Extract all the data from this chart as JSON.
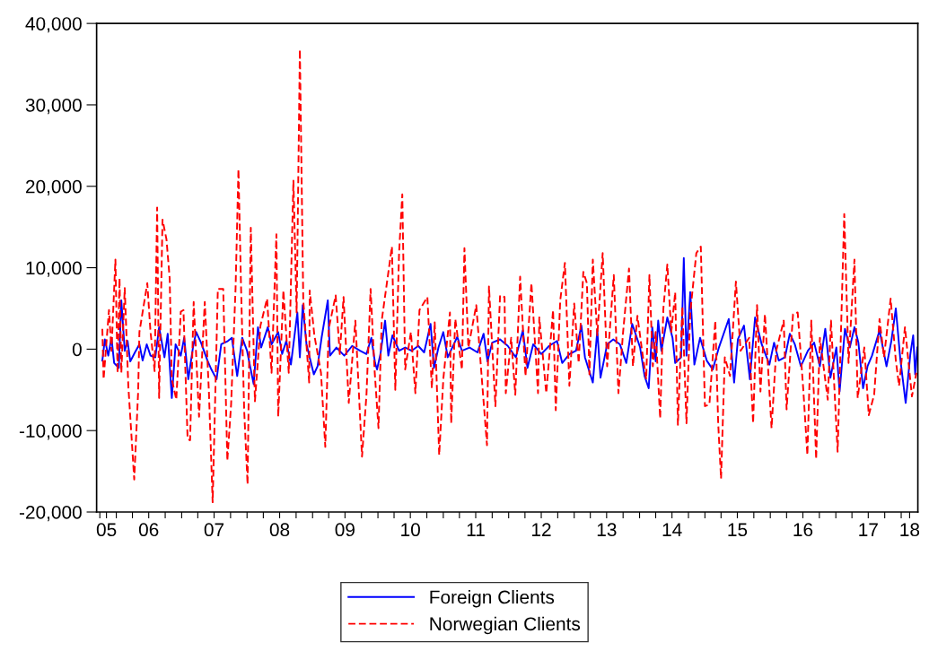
{
  "chart_data": {
    "type": "line",
    "xlim": [
      "2005-09-13",
      "2018-04-04"
    ],
    "ylim": [
      -20000,
      40000
    ],
    "yticks": [
      {
        "value": -20000,
        "label": "-20,000"
      },
      {
        "value": -10000,
        "label": "-10,000"
      },
      0,
      {
        "value": 10000,
        "label": "10,000"
      },
      {
        "value": 20000,
        "label": "20,000"
      },
      {
        "value": 30000,
        "label": "30,000"
      },
      {
        "value": 40000,
        "label": "40,000"
      }
    ],
    "xticks": [
      {
        "value": "2005-10-01",
        "label": null
      },
      {
        "value": "2005-11-07",
        "label": "05"
      },
      {
        "value": "2006-01-01",
        "label": null
      },
      {
        "value": "2006-04-01",
        "label": null
      },
      {
        "value": "2006-07-01",
        "label": "06"
      },
      {
        "value": "2006-10-01",
        "label": null
      },
      {
        "value": "2007-01-01",
        "label": null
      },
      {
        "value": "2007-04-01",
        "label": null
      },
      {
        "value": "2007-07-01",
        "label": "07"
      },
      {
        "value": "2007-10-01",
        "label": null
      },
      {
        "value": "2008-01-01",
        "label": null
      },
      {
        "value": "2008-04-01",
        "label": null
      },
      {
        "value": "2008-07-01",
        "label": "08"
      },
      {
        "value": "2008-10-01",
        "label": null
      },
      {
        "value": "2009-01-01",
        "label": null
      },
      {
        "value": "2009-04-01",
        "label": null
      },
      {
        "value": "2009-07-01",
        "label": "09"
      },
      {
        "value": "2009-10-01",
        "label": null
      },
      {
        "value": "2010-01-01",
        "label": null
      },
      {
        "value": "2010-04-01",
        "label": null
      },
      {
        "value": "2010-07-01",
        "label": "10"
      },
      {
        "value": "2010-10-01",
        "label": null
      },
      {
        "value": "2011-01-01",
        "label": null
      },
      {
        "value": "2011-04-01",
        "label": null
      },
      {
        "value": "2011-07-01",
        "label": "11"
      },
      {
        "value": "2011-10-01",
        "label": null
      },
      {
        "value": "2012-01-01",
        "label": null
      },
      {
        "value": "2012-04-01",
        "label": null
      },
      {
        "value": "2012-07-01",
        "label": "12"
      },
      {
        "value": "2012-10-01",
        "label": null
      },
      {
        "value": "2013-01-01",
        "label": null
      },
      {
        "value": "2013-04-01",
        "label": null
      },
      {
        "value": "2013-07-01",
        "label": "13"
      },
      {
        "value": "2013-10-01",
        "label": null
      },
      {
        "value": "2014-01-01",
        "label": null
      },
      {
        "value": "2014-04-01",
        "label": null
      },
      {
        "value": "2014-07-01",
        "label": "14"
      },
      {
        "value": "2014-10-01",
        "label": null
      },
      {
        "value": "2015-01-01",
        "label": null
      },
      {
        "value": "2015-04-01",
        "label": null
      },
      {
        "value": "2015-07-01",
        "label": "15"
      },
      {
        "value": "2015-10-01",
        "label": null
      },
      {
        "value": "2016-01-01",
        "label": null
      },
      {
        "value": "2016-04-01",
        "label": null
      },
      {
        "value": "2016-07-01",
        "label": "16"
      },
      {
        "value": "2016-10-01",
        "label": null
      },
      {
        "value": "2017-01-01",
        "label": null
      },
      {
        "value": "2017-04-01",
        "label": null
      },
      {
        "value": "2017-07-01",
        "label": "17"
      },
      {
        "value": "2017-10-01",
        "label": null
      },
      {
        "value": "2018-01-01",
        "label": null
      },
      {
        "value": "2018-02-17",
        "label": "18"
      }
    ],
    "grid": false,
    "legend": "bottom",
    "marker": "none",
    "series": [
      {
        "name": "Foreign Clients",
        "color": "#0000ff",
        "line_style": "solid",
        "x": [
          "2005-10-15",
          "2005-10-29",
          "2005-11-17",
          "2005-12-05",
          "2005-12-20",
          "2006-01-15",
          "2006-01-29",
          "2006-02-17",
          "2006-03-05",
          "2006-03-20",
          "2006-04-15",
          "2006-05-10",
          "2006-05-28",
          "2006-06-20",
          "2006-07-11",
          "2006-08-07",
          "2006-08-28",
          "2006-09-27",
          "2006-10-15",
          "2006-11-07",
          "2006-11-28",
          "2006-12-27",
          "2007-01-15",
          "2007-02-07",
          "2007-03-05",
          "2007-03-23",
          "2007-04-19",
          "2007-05-25",
          "2007-06-16",
          "2007-07-15",
          "2007-08-10",
          "2007-09-16",
          "2007-10-08",
          "2007-11-07",
          "2007-12-05",
          "2008-01-01",
          "2008-02-07",
          "2008-03-02",
          "2008-03-20",
          "2008-04-26",
          "2008-05-17",
          "2008-06-23",
          "2008-07-15",
          "2008-08-07",
          "2008-09-02",
          "2008-10-08",
          "2008-10-22",
          "2008-11-07",
          "2008-11-28",
          "2009-01-08",
          "2009-01-29",
          "2009-02-21",
          "2009-03-27",
          "2009-04-08",
          "2009-05-14",
          "2009-06-27",
          "2009-08-10",
          "2009-09-23",
          "2009-10-29",
          "2009-11-25",
          "2009-12-16",
          "2009-12-27",
          "2010-01-15",
          "2010-02-10",
          "2010-02-28",
          "2010-03-23",
          "2010-04-29",
          "2010-06-02",
          "2010-07-08",
          "2010-08-14",
          "2010-09-16",
          "2010-10-22",
          "2010-11-10",
          "2010-12-05",
          "2011-01-01",
          "2011-01-26",
          "2011-03-20",
          "2011-04-15",
          "2011-05-28",
          "2011-07-11",
          "2011-08-14",
          "2011-09-05",
          "2011-10-01",
          "2011-11-14",
          "2011-12-27",
          "2012-02-10",
          "2012-03-20",
          "2012-04-15",
          "2012-05-17",
          "2012-07-01",
          "2012-08-14",
          "2012-09-27",
          "2012-10-26",
          "2012-12-05",
          "2013-01-11",
          "2013-02-10",
          "2013-03-02",
          "2013-04-15",
          "2013-05-10",
          "2013-05-28",
          "2013-07-04",
          "2013-08-07",
          "2013-09-13",
          "2013-10-19",
          "2013-11-21",
          "2014-01-04",
          "2014-01-29",
          "2014-02-21",
          "2014-03-13",
          "2014-04-01",
          "2014-04-15",
          "2014-05-03",
          "2014-06-05",
          "2014-07-04",
          "2014-07-19",
          "2014-08-21",
          "2014-09-05",
          "2014-09-20",
          "2014-10-11",
          "2014-11-03",
          "2014-12-05",
          "2015-01-11",
          "2015-02-14",
          "2015-03-20",
          "2015-05-14",
          "2015-06-13",
          "2015-07-04",
          "2015-08-07",
          "2015-09-09",
          "2015-10-08",
          "2015-11-14",
          "2015-12-27",
          "2016-01-22",
          "2016-02-17",
          "2016-03-23",
          "2016-04-19",
          "2016-05-17",
          "2016-06-20",
          "2016-07-29",
          "2016-09-02",
          "2016-10-04",
          "2016-11-03",
          "2016-12-02",
          "2017-01-04",
          "2017-01-22",
          "2017-02-21",
          "2017-03-20",
          "2017-04-15",
          "2017-05-07",
          "2017-06-02",
          "2017-06-27",
          "2017-07-22",
          "2017-09-02",
          "2017-10-11",
          "2017-11-07",
          "2017-12-02",
          "2017-12-27",
          "2018-01-26",
          "2018-02-21",
          "2018-03-09",
          "2018-03-20",
          "2018-04-01"
        ],
        "values": [
          -1400,
          1200,
          -800,
          1400,
          -1700,
          -2300,
          6000,
          -200,
          1000,
          -1500,
          -400,
          600,
          -1400,
          600,
          -800,
          -1000,
          2700,
          -1000,
          1900,
          -6000,
          600,
          -800,
          1400,
          -3700,
          200,
          2100,
          800,
          -1400,
          -2500,
          -3700,
          600,
          1000,
          1400,
          -3300,
          1400,
          -200,
          -4300,
          2700,
          200,
          2700,
          600,
          2100,
          -600,
          1000,
          -1900,
          4500,
          -1000,
          5400,
          600,
          -3100,
          -2100,
          1500,
          6000,
          -800,
          200,
          -800,
          400,
          -200,
          -600,
          1400,
          -1700,
          -2500,
          -600,
          3500,
          -800,
          1700,
          -200,
          200,
          -200,
          400,
          -400,
          3100,
          -2300,
          200,
          2100,
          -1000,
          1500,
          -200,
          200,
          -400,
          1900,
          -1500,
          800,
          1200,
          400,
          -1000,
          2300,
          -2300,
          600,
          -600,
          400,
          1000,
          -1700,
          -600,
          -200,
          2900,
          -1000,
          -4100,
          2300,
          -3500,
          600,
          1200,
          600,
          -1700,
          3100,
          200,
          -3300,
          -4800,
          2700,
          -1500,
          3500,
          -200,
          3900,
          1400,
          -1700,
          -1000,
          11200,
          -800,
          7000,
          -1900,
          1400,
          -1400,
          -2500,
          200,
          3700,
          -4100,
          1200,
          2900,
          -3700,
          3900,
          600,
          -1900,
          800,
          -1400,
          -1000,
          1900,
          600,
          -2100,
          -200,
          800,
          -2100,
          2500,
          -3500,
          200,
          -5200,
          2500,
          200,
          2700,
          800,
          -4800,
          -2100,
          -800,
          2300,
          -2100,
          1000,
          5000,
          -1200,
          -6600,
          -600,
          1700,
          -3100,
          200
        ]
      },
      {
        "name": "Norwegian Clients",
        "color": "#ff0000",
        "line_style": "dashed",
        "x": [
          "2005-10-15",
          "2005-10-22",
          "2005-11-21",
          "2005-12-05",
          "2005-12-27",
          "2006-01-08",
          "2006-01-19",
          "2006-01-29",
          "2006-02-17",
          "2006-03-09",
          "2006-04-11",
          "2006-05-03",
          "2006-05-10",
          "2006-06-23",
          "2006-07-11",
          "2006-08-03",
          "2006-08-17",
          "2006-08-28",
          "2006-09-16",
          "2006-10-08",
          "2006-10-26",
          "2006-11-07",
          "2006-12-02",
          "2006-12-27",
          "2007-01-11",
          "2007-02-03",
          "2007-02-17",
          "2007-03-09",
          "2007-04-08",
          "2007-05-10",
          "2007-06-02",
          "2007-06-23",
          "2007-07-22",
          "2007-08-21",
          "2007-09-13",
          "2007-10-04",
          "2007-10-29",
          "2007-11-14",
          "2007-11-28",
          "2007-12-16",
          "2008-01-04",
          "2008-01-22",
          "2008-02-14",
          "2008-03-16",
          "2008-04-22",
          "2008-05-17",
          "2008-06-13",
          "2008-06-23",
          "2008-07-22",
          "2008-08-21",
          "2008-09-16",
          "2008-10-04",
          "2008-10-22",
          "2008-11-10",
          "2008-12-13",
          "2008-12-16",
          "2009-01-11",
          "2009-02-17",
          "2009-03-13",
          "2009-04-01",
          "2009-05-10",
          "2009-06-02",
          "2009-06-23",
          "2009-07-22",
          "2009-08-28",
          "2009-10-04",
          "2009-10-29",
          "2009-11-21",
          "2009-12-13",
          "2010-01-04",
          "2010-01-22",
          "2010-03-20",
          "2010-04-08",
          "2010-04-29",
          "2010-05-17",
          "2010-06-02",
          "2010-07-04",
          "2010-07-29",
          "2010-08-21",
          "2010-10-04",
          "2010-10-29",
          "2010-11-14",
          "2010-12-09",
          "2011-01-01",
          "2011-02-07",
          "2011-02-14",
          "2011-03-09",
          "2011-04-15",
          "2011-04-29",
          "2011-05-21",
          "2011-07-04",
          "2011-08-03",
          "2011-09-02",
          "2011-09-13",
          "2011-10-19",
          "2011-11-14",
          "2011-12-09",
          "2011-12-16",
          "2012-01-15",
          "2012-02-07",
          "2012-03-05",
          "2012-04-04",
          "2012-05-07",
          "2012-06-13",
          "2012-06-20",
          "2012-07-29",
          "2012-09-05",
          "2012-09-20",
          "2012-10-15",
          "2012-11-10",
          "2012-12-05",
          "2013-01-01",
          "2013-01-26",
          "2013-02-21",
          "2013-03-13",
          "2013-03-27",
          "2013-04-15",
          "2013-05-10",
          "2013-06-09",
          "2013-07-04",
          "2013-08-10",
          "2013-09-05",
          "2013-10-01",
          "2013-11-03",
          "2013-11-25",
          "2013-12-20",
          "2014-01-15",
          "2014-02-07",
          "2014-02-25",
          "2014-03-16",
          "2014-04-01",
          "2014-04-26",
          "2014-05-14",
          "2014-06-05",
          "2014-06-27",
          "2014-07-19",
          "2014-08-03",
          "2014-08-28",
          "2014-09-20",
          "2014-10-11",
          "2014-11-14",
          "2014-12-09",
          "2015-01-01",
          "2015-01-26",
          "2015-02-28",
          "2015-03-16",
          "2015-04-01",
          "2015-04-22",
          "2015-05-21",
          "2015-06-23",
          "2015-07-19",
          "2015-09-05",
          "2015-09-27",
          "2015-10-19",
          "2015-11-07",
          "2015-12-02",
          "2016-01-08",
          "2016-02-03",
          "2016-03-16",
          "2016-04-01",
          "2016-05-07",
          "2016-06-02",
          "2016-07-04",
          "2016-07-26",
          "2016-08-17",
          "2016-09-13",
          "2016-10-04",
          "2016-11-17",
          "2016-12-05",
          "2017-01-11",
          "2017-02-17",
          "2017-03-13",
          "2017-04-15",
          "2017-05-03",
          "2017-06-09",
          "2017-07-04",
          "2017-08-03",
          "2017-09-02",
          "2017-09-27",
          "2017-11-03",
          "2017-12-02",
          "2017-12-20",
          "2018-01-22",
          "2018-03-02",
          "2018-03-27"
        ],
        "values": [
          2500,
          -3700,
          4800,
          -200,
          11000,
          -2900,
          8700,
          -2900,
          7500,
          -4500,
          -16000,
          -5200,
          2100,
          8100,
          2100,
          -2700,
          17400,
          -6000,
          15900,
          13500,
          8700,
          -3700,
          -6200,
          4600,
          4800,
          -11000,
          -11200,
          5800,
          -8300,
          5800,
          -5200,
          -18800,
          7400,
          7400,
          -13700,
          -6800,
          7500,
          22100,
          8100,
          -7500,
          -16600,
          14900,
          -6400,
          2900,
          6200,
          -2900,
          14100,
          -8300,
          7200,
          -2900,
          20700,
          4500,
          36800,
          6000,
          -4100,
          7200,
          1700,
          -2900,
          -12000,
          2500,
          6600,
          -600,
          6400,
          -6600,
          3500,
          -13200,
          -5600,
          7400,
          -2500,
          -9700,
          3500,
          12600,
          -5000,
          11800,
          19000,
          -2500,
          2100,
          -5400,
          4800,
          6400,
          -4800,
          3300,
          -13000,
          -3700,
          4500,
          -9100,
          3700,
          -2500,
          12400,
          200,
          5400,
          -3300,
          -11800,
          7700,
          -7000,
          6600,
          6400,
          -5400,
          1400,
          -5600,
          8900,
          -3300,
          8100,
          -5400,
          3900,
          -5400,
          4800,
          -7500,
          6000,
          10600,
          -4500,
          5600,
          -1700,
          9500,
          8100,
          -3100,
          11000,
          1700,
          11800,
          -2100,
          9100,
          -5400,
          2100,
          9900,
          -2100,
          4100,
          -200,
          -3700,
          9100,
          -2100,
          2100,
          -8500,
          5000,
          10400,
          2100,
          7000,
          -9300,
          5200,
          -9100,
          4500,
          11800,
          12600,
          -7000,
          -6800,
          3500,
          -9100,
          -15900,
          -1000,
          -3300,
          8300,
          -200,
          1400,
          -9100,
          5400,
          -5200,
          4300,
          -9700,
          -200,
          3500,
          -7400,
          4300,
          4500,
          -5200,
          -13000,
          3500,
          -13500,
          1400,
          -6200,
          3500,
          -12600,
          16600,
          -1700,
          11000,
          -6000,
          200,
          -8100,
          -5600,
          3700,
          -1000,
          6200,
          -1400,
          -4500,
          2700,
          -5800,
          -2900
        ]
      }
    ]
  }
}
